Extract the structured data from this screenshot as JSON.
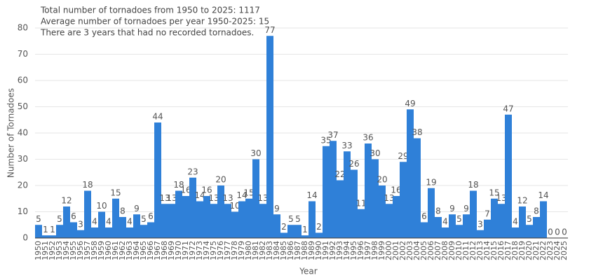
{
  "chart_data": {
    "type": "bar",
    "annotations": [
      "Total number of tornadoes from 1950 to 2025: 1117",
      "Average number of tornadoes per year 1950-2025: 15",
      "There are 3 years that had no recorded tornadoes."
    ],
    "x_label": "Year",
    "y_label": "Number of Tornadoes",
    "categories": [
      "1950",
      "1951",
      "1952",
      "1953",
      "1954",
      "1955",
      "1956",
      "1957",
      "1958",
      "1959",
      "1960",
      "1961",
      "1962",
      "1963",
      "1964",
      "1965",
      "1966",
      "1967",
      "1968",
      "1969",
      "1970",
      "1971",
      "1972",
      "1973",
      "1974",
      "1975",
      "1976",
      "1977",
      "1978",
      "1979",
      "1980",
      "1981",
      "1982",
      "1983",
      "1984",
      "1985",
      "1986",
      "1987",
      "1988",
      "1989",
      "1990",
      "1991",
      "1992",
      "1993",
      "1994",
      "1995",
      "1996",
      "1997",
      "1998",
      "1999",
      "2000",
      "2001",
      "2002",
      "2003",
      "2004",
      "2005",
      "2006",
      "2007",
      "2008",
      "2009",
      "2010",
      "2011",
      "2012",
      "2013",
      "2014",
      "2015",
      "2016",
      "2017",
      "2018",
      "2019",
      "2020",
      "2021",
      "2022",
      "2023",
      "2024",
      "2025"
    ],
    "values": [
      5,
      1,
      1,
      5,
      12,
      6,
      3,
      18,
      4,
      10,
      4,
      15,
      8,
      4,
      9,
      5,
      6,
      44,
      13,
      13,
      18,
      16,
      23,
      14,
      16,
      13,
      20,
      13,
      10,
      14,
      15,
      30,
      13,
      77,
      9,
      2,
      5,
      5,
      1,
      14,
      2,
      35,
      37,
      22,
      33,
      26,
      11,
      36,
      30,
      20,
      13,
      16,
      29,
      49,
      38,
      6,
      19,
      8,
      4,
      9,
      5,
      9,
      18,
      3,
      7,
      15,
      13,
      47,
      4,
      12,
      5,
      8,
      14,
      0,
      0,
      0
    ],
    "color": "#2f80d8",
    "ylim": [
      0,
      80
    ],
    "yticks": [
      0,
      10,
      20,
      30,
      40,
      50,
      60,
      70,
      80
    ],
    "grid": true
  }
}
